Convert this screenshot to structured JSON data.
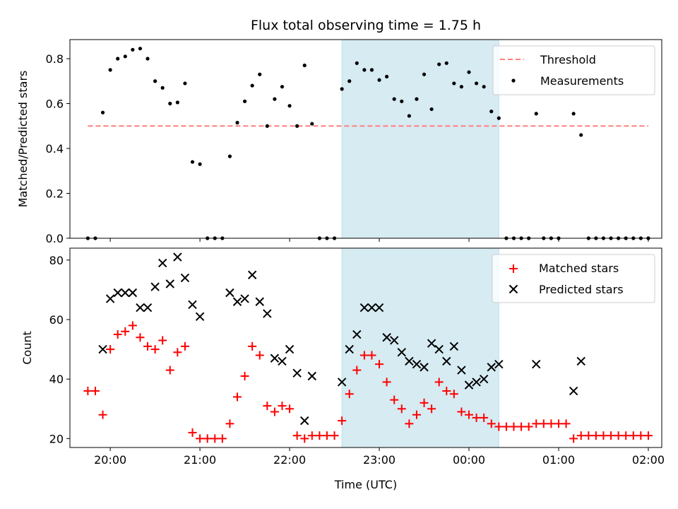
{
  "chart_data": [
    {
      "type": "scatter",
      "title": "Flux total observing time = 1.75 h",
      "xlabel": "",
      "ylabel": "Matched/Predicted stars",
      "xlim": [
        "19:33",
        "02:09"
      ],
      "ylim": [
        0,
        0.885
      ],
      "x_ticks": [
        "20:00",
        "21:00",
        "22:00",
        "23:00",
        "00:00",
        "01:00",
        "02:00"
      ],
      "y_ticks": [
        "0.0",
        "0.2",
        "0.4",
        "0.6",
        "0.8"
      ],
      "shaded_span": [
        "22:35",
        "00:20"
      ],
      "legend_position": "top-right",
      "threshold": {
        "name": "Threshold",
        "color": "#ff7f7f",
        "value": 0.5,
        "x_range": [
          "19:45",
          "02:00"
        ]
      },
      "series": [
        {
          "name": "Measurements",
          "color": "#000000",
          "marker": "dot",
          "points": [
            [
              "19:45",
              0
            ],
            [
              "19:50",
              0
            ],
            [
              "19:55",
              0.56
            ],
            [
              "20:00",
              0.75
            ],
            [
              "20:05",
              0.8
            ],
            [
              "20:10",
              0.81
            ],
            [
              "20:15",
              0.84
            ],
            [
              "20:20",
              0.845
            ],
            [
              "20:25",
              0.8
            ],
            [
              "20:30",
              0.7
            ],
            [
              "20:35",
              0.67
            ],
            [
              "20:40",
              0.6
            ],
            [
              "20:45",
              0.605
            ],
            [
              "20:50",
              0.69
            ],
            [
              "20:55",
              0.34
            ],
            [
              "21:00",
              0.33
            ],
            [
              "21:05",
              0
            ],
            [
              "21:10",
              0
            ],
            [
              "21:15",
              0
            ],
            [
              "21:20",
              0.365
            ],
            [
              "21:25",
              0.515
            ],
            [
              "21:30",
              0.61
            ],
            [
              "21:35",
              0.68
            ],
            [
              "21:40",
              0.73
            ],
            [
              "21:45",
              0.5
            ],
            [
              "21:50",
              0.62
            ],
            [
              "21:55",
              0.675
            ],
            [
              "22:00",
              0.59
            ],
            [
              "22:05",
              0.5
            ],
            [
              "22:10",
              0.77
            ],
            [
              "22:15",
              0.51
            ],
            [
              "22:20",
              0
            ],
            [
              "22:25",
              0
            ],
            [
              "22:30",
              0
            ],
            [
              "22:35",
              0.665
            ],
            [
              "22:40",
              0.7
            ],
            [
              "22:45",
              0.78
            ],
            [
              "22:50",
              0.75
            ],
            [
              "22:55",
              0.75
            ],
            [
              "23:00",
              0.705
            ],
            [
              "23:05",
              0.72
            ],
            [
              "23:10",
              0.62
            ],
            [
              "23:15",
              0.61
            ],
            [
              "23:20",
              0.545
            ],
            [
              "23:25",
              0.62
            ],
            [
              "23:30",
              0.73
            ],
            [
              "23:35",
              0.575
            ],
            [
              "23:40",
              0.775
            ],
            [
              "23:45",
              0.78
            ],
            [
              "23:50",
              0.69
            ],
            [
              "23:55",
              0.675
            ],
            [
              "00:00",
              0.74
            ],
            [
              "00:05",
              0.69
            ],
            [
              "00:10",
              0.675
            ],
            [
              "00:15",
              0.565
            ],
            [
              "00:20",
              0.535
            ],
            [
              "00:25",
              0
            ],
            [
              "00:30",
              0
            ],
            [
              "00:35",
              0
            ],
            [
              "00:40",
              0
            ],
            [
              "00:45",
              0.555
            ],
            [
              "00:50",
              0
            ],
            [
              "00:55",
              0
            ],
            [
              "01:00",
              0
            ],
            [
              "01:10",
              0.555
            ],
            [
              "01:15",
              0.46
            ],
            [
              "01:20",
              0
            ],
            [
              "01:25",
              0
            ],
            [
              "01:30",
              0
            ],
            [
              "01:35",
              0
            ],
            [
              "01:40",
              0
            ],
            [
              "01:45",
              0
            ],
            [
              "01:50",
              0
            ],
            [
              "01:55",
              0
            ],
            [
              "02:00",
              0
            ]
          ]
        }
      ]
    },
    {
      "type": "scatter",
      "title": "",
      "xlabel": "Time (UTC)",
      "ylabel": "Count",
      "xlim": [
        "19:33",
        "02:09"
      ],
      "ylim": [
        17,
        84
      ],
      "x_ticks": [
        "20:00",
        "21:00",
        "22:00",
        "23:00",
        "00:00",
        "01:00",
        "02:00"
      ],
      "y_ticks": [
        "20",
        "40",
        "60",
        "80"
      ],
      "shaded_span": [
        "22:35",
        "00:20"
      ],
      "legend_position": "top-right",
      "series": [
        {
          "name": "Matched stars",
          "color": "#ff0000",
          "marker": "plus",
          "points": [
            [
              "19:45",
              36
            ],
            [
              "19:50",
              36
            ],
            [
              "19:55",
              28
            ],
            [
              "20:00",
              50
            ],
            [
              "20:05",
              55
            ],
            [
              "20:10",
              56
            ],
            [
              "20:15",
              58
            ],
            [
              "20:20",
              54
            ],
            [
              "20:25",
              51
            ],
            [
              "20:30",
              50
            ],
            [
              "20:35",
              53
            ],
            [
              "20:40",
              43
            ],
            [
              "20:45",
              49
            ],
            [
              "20:50",
              51
            ],
            [
              "20:55",
              22
            ],
            [
              "21:00",
              20
            ],
            [
              "21:05",
              20
            ],
            [
              "21:10",
              20
            ],
            [
              "21:15",
              20
            ],
            [
              "21:20",
              25
            ],
            [
              "21:25",
              34
            ],
            [
              "21:30",
              41
            ],
            [
              "21:35",
              51
            ],
            [
              "21:40",
              48
            ],
            [
              "21:45",
              31
            ],
            [
              "21:50",
              29
            ],
            [
              "21:55",
              31
            ],
            [
              "22:00",
              30
            ],
            [
              "22:05",
              21
            ],
            [
              "22:10",
              20
            ],
            [
              "22:15",
              21
            ],
            [
              "22:20",
              21
            ],
            [
              "22:25",
              21
            ],
            [
              "22:30",
              21
            ],
            [
              "22:35",
              26
            ],
            [
              "22:40",
              35
            ],
            [
              "22:45",
              43
            ],
            [
              "22:50",
              48
            ],
            [
              "22:55",
              48
            ],
            [
              "23:00",
              45
            ],
            [
              "23:05",
              39
            ],
            [
              "23:10",
              33
            ],
            [
              "23:15",
              30
            ],
            [
              "23:20",
              25
            ],
            [
              "23:25",
              28
            ],
            [
              "23:30",
              32
            ],
            [
              "23:35",
              30
            ],
            [
              "23:40",
              39
            ],
            [
              "23:45",
              36
            ],
            [
              "23:50",
              35
            ],
            [
              "23:55",
              29
            ],
            [
              "00:00",
              28
            ],
            [
              "00:05",
              27
            ],
            [
              "00:10",
              27
            ],
            [
              "00:15",
              25
            ],
            [
              "00:20",
              24
            ],
            [
              "00:25",
              24
            ],
            [
              "00:30",
              24
            ],
            [
              "00:35",
              24
            ],
            [
              "00:40",
              24
            ],
            [
              "00:45",
              25
            ],
            [
              "00:50",
              25
            ],
            [
              "00:55",
              25
            ],
            [
              "01:00",
              25
            ],
            [
              "01:05",
              25
            ],
            [
              "01:10",
              20
            ],
            [
              "01:15",
              21
            ],
            [
              "01:20",
              21
            ],
            [
              "01:25",
              21
            ],
            [
              "01:30",
              21
            ],
            [
              "01:35",
              21
            ],
            [
              "01:40",
              21
            ],
            [
              "01:45",
              21
            ],
            [
              "01:50",
              21
            ],
            [
              "01:55",
              21
            ],
            [
              "02:00",
              21
            ]
          ]
        },
        {
          "name": "Predicted stars",
          "color": "#000000",
          "marker": "x",
          "points": [
            [
              "19:55",
              50
            ],
            [
              "20:00",
              67
            ],
            [
              "20:05",
              69
            ],
            [
              "20:10",
              69
            ],
            [
              "20:15",
              69
            ],
            [
              "20:20",
              64
            ],
            [
              "20:25",
              64
            ],
            [
              "20:30",
              71
            ],
            [
              "20:35",
              79
            ],
            [
              "20:40",
              72
            ],
            [
              "20:45",
              81
            ],
            [
              "20:50",
              74
            ],
            [
              "20:55",
              65
            ],
            [
              "21:00",
              61
            ],
            [
              "21:20",
              69
            ],
            [
              "21:25",
              66
            ],
            [
              "21:30",
              67
            ],
            [
              "21:35",
              75
            ],
            [
              "21:40",
              66
            ],
            [
              "21:45",
              62
            ],
            [
              "21:50",
              47
            ],
            [
              "21:55",
              46
            ],
            [
              "22:00",
              50
            ],
            [
              "22:05",
              42
            ],
            [
              "22:10",
              26
            ],
            [
              "22:15",
              41
            ],
            [
              "22:35",
              39
            ],
            [
              "22:40",
              50
            ],
            [
              "22:45",
              55
            ],
            [
              "22:50",
              64
            ],
            [
              "22:55",
              64
            ],
            [
              "23:00",
              64
            ],
            [
              "23:05",
              54
            ],
            [
              "23:10",
              53
            ],
            [
              "23:15",
              49
            ],
            [
              "23:20",
              46
            ],
            [
              "23:25",
              45
            ],
            [
              "23:30",
              44
            ],
            [
              "23:35",
              52
            ],
            [
              "23:40",
              50
            ],
            [
              "23:45",
              46
            ],
            [
              "23:50",
              51
            ],
            [
              "23:55",
              43
            ],
            [
              "00:00",
              38
            ],
            [
              "00:05",
              39
            ],
            [
              "00:10",
              40
            ],
            [
              "00:15",
              44
            ],
            [
              "00:20",
              45
            ],
            [
              "00:45",
              45
            ],
            [
              "01:10",
              36
            ],
            [
              "01:15",
              46
            ]
          ]
        }
      ]
    }
  ]
}
